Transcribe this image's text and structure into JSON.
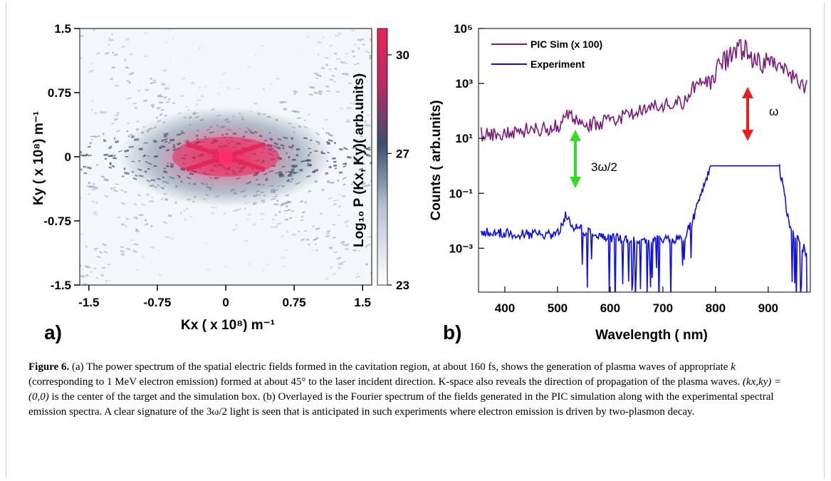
{
  "figure": {
    "label": "Figure 6.",
    "caption_a": "(a) The power spectrum of the spatial electric fields formed in the cavitation region, at about 160 fs, shows the generation of plasma waves of appropriate ",
    "caption_k": "k",
    "caption_b": " (corresponding to 1 MeV electron emission) formed at about 45° to the laser incident direction. K-space also reveals the direction of propagation of the plasma waves. ",
    "caption_math": "(kx,ky) = (0,0)",
    "caption_c": " is the center of the target and the simulation box. (b) Overlayed is the Fourier spectrum of the fields generated in the PIC simulation along with the experimental spectral emission spectra. A clear signature of the 3ω/2 light is seen that is anticipated in such experiments where electron emission is driven by two-plasmon decay."
  },
  "panel_a": {
    "letter": "a)",
    "xlabel": "Kx ( x 10⁸) m⁻¹",
    "ylabel": "Ky ( x 10⁸) m⁻¹",
    "colorbar_label": "Log₁₀ P (Kx, Ky)( arb.units)",
    "colors": {
      "high": "#e8245a",
      "mid": "#39506e",
      "low": "#ffffff"
    }
  },
  "panel_b": {
    "letter": "b)",
    "annotation_omega": "ω",
    "annotation_three_halves": "3ω/2",
    "colors": {
      "pic": "#7b1a7b",
      "experiment": "#1010e6",
      "omega_arrow": "#e62020",
      "three_halves_arrow": "#33dd22"
    }
  },
  "chart_data": [
    {
      "type": "heatmap",
      "title": "",
      "xlabel": "Kx ( x 10⁸) m⁻¹",
      "ylabel": "Ky ( x 10⁸) m⁻¹",
      "xlim": [
        -1.6,
        1.6
      ],
      "ylim": [
        -1.5,
        1.5
      ],
      "x_ticks": [
        "-1.5",
        "-0.75",
        "0",
        "0.75",
        "1.5"
      ],
      "y_ticks": [
        "1.5",
        "0.75",
        "0",
        "-0.75",
        "-1.5"
      ],
      "colorbar": {
        "label": "Log₁₀ P (Kx, Ky)( arb.units)",
        "ticks": [
          "30",
          "27",
          "23"
        ],
        "range": [
          23,
          30.8
        ]
      },
      "peak": {
        "kx": 0,
        "ky": 0
      },
      "lobe_angle_deg": 45
    },
    {
      "type": "line",
      "xlabel": "Wavelength ( nm)",
      "ylabel": "Counts ( arb.units)",
      "xlim": [
        350,
        980
      ],
      "ylim_log10": [
        -4.6,
        5
      ],
      "y_scale": "log",
      "x_ticks": [
        "400",
        "500",
        "600",
        "700",
        "800",
        "900"
      ],
      "y_ticks": [
        "10⁵",
        "10³",
        "10¹",
        "10⁻¹",
        "10⁻³"
      ],
      "legend_position": "top-left",
      "series": [
        {
          "name": "PIC Sim (x 100)",
          "x": [
            355,
            400,
            450,
            500,
            520,
            560,
            600,
            650,
            700,
            740,
            760,
            800,
            830,
            860,
            880,
            920,
            960,
            975
          ],
          "log10_y": [
            1.4,
            1.5,
            1.6,
            1.7,
            2.1,
            1.8,
            1.9,
            2.2,
            2.5,
            2.6,
            3.2,
            3.8,
            4.6,
            4.6,
            4.3,
            3.9,
            3.3,
            3.1
          ]
        },
        {
          "name": "Experiment",
          "x": [
            355,
            400,
            450,
            500,
            515,
            530,
            560,
            600,
            650,
            700,
            740,
            760,
            790,
            800,
            920,
            925,
            940,
            960,
            975
          ],
          "log10_y": [
            -2.4,
            -2.45,
            -2.5,
            -2.5,
            -1.8,
            -2.2,
            -2.45,
            -2.6,
            -2.7,
            -2.7,
            -2.65,
            -1.8,
            0,
            0,
            0,
            -0.4,
            -2.2,
            -2.8,
            -3.2
          ]
        }
      ],
      "annotations": [
        {
          "text": "ω",
          "x": 840
        },
        {
          "text": "3ω/2",
          "x": 525
        }
      ]
    }
  ]
}
